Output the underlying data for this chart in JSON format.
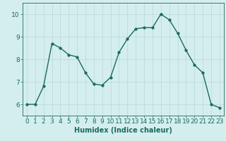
{
  "x": [
    0,
    1,
    2,
    3,
    4,
    5,
    6,
    7,
    8,
    9,
    10,
    11,
    12,
    13,
    14,
    15,
    16,
    17,
    18,
    19,
    20,
    21,
    22,
    23
  ],
  "y": [
    6.0,
    6.0,
    6.8,
    8.7,
    8.5,
    8.2,
    8.1,
    7.4,
    6.9,
    6.85,
    7.2,
    8.3,
    8.9,
    9.35,
    9.4,
    9.4,
    10.0,
    9.75,
    9.15,
    8.4,
    7.75,
    7.4,
    6.0,
    5.85
  ],
  "line_color": "#1a6b5a",
  "marker": "o",
  "markersize": 2.5,
  "linewidth": 1.0,
  "xlabel": "Humidex (Indice chaleur)",
  "xlim": [
    -0.5,
    23.5
  ],
  "ylim": [
    5.5,
    10.5
  ],
  "yticks": [
    6,
    7,
    8,
    9,
    10
  ],
  "xticks": [
    0,
    1,
    2,
    3,
    4,
    5,
    6,
    7,
    8,
    9,
    10,
    11,
    12,
    13,
    14,
    15,
    16,
    17,
    18,
    19,
    20,
    21,
    22,
    23
  ],
  "background_color": "#d4eeee",
  "grid_color": "#b8d8d8",
  "font_color": "#1a6b5a",
  "xlabel_fontsize": 7,
  "tick_fontsize": 6.5
}
